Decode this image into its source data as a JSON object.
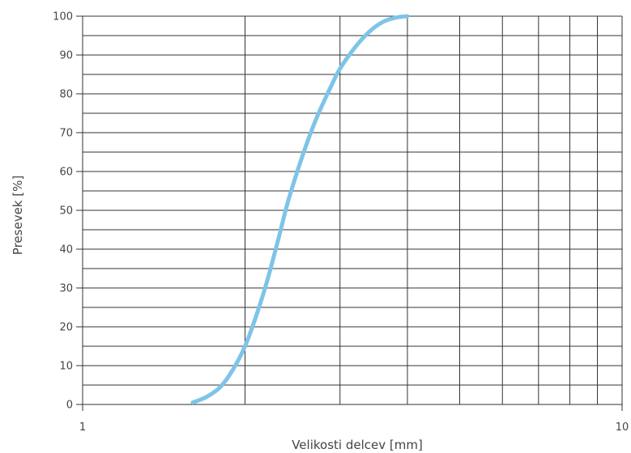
{
  "chart_data": {
    "type": "line",
    "title": "",
    "xlabel": "Velikosti delcev [mm]",
    "ylabel": "Presevek [%]",
    "x_scale": "log",
    "xlim": [
      1,
      10
    ],
    "ylim": [
      0,
      100
    ],
    "x_tick_labels": [
      "1",
      "10"
    ],
    "y_ticks": [
      0,
      10,
      20,
      30,
      40,
      50,
      60,
      70,
      80,
      90,
      100
    ],
    "grid": true,
    "legend": "none",
    "colors": {
      "line": "#7ec4e8",
      "grid": "#333333",
      "text": "#444444"
    },
    "series": [
      {
        "x": [
          1.6,
          1.7,
          1.8,
          1.9,
          2.0,
          2.1,
          2.2,
          2.3,
          2.4,
          2.5,
          2.6,
          2.7,
          2.8,
          2.9,
          3.0,
          3.2,
          3.4,
          3.6,
          3.8,
          4.0
        ],
        "y": [
          0.5,
          2,
          4.5,
          9,
          15,
          23,
          32,
          42,
          52,
          60,
          67,
          73,
          78,
          82.5,
          86.5,
          92,
          96,
          98.5,
          99.6,
          100
        ]
      }
    ]
  }
}
